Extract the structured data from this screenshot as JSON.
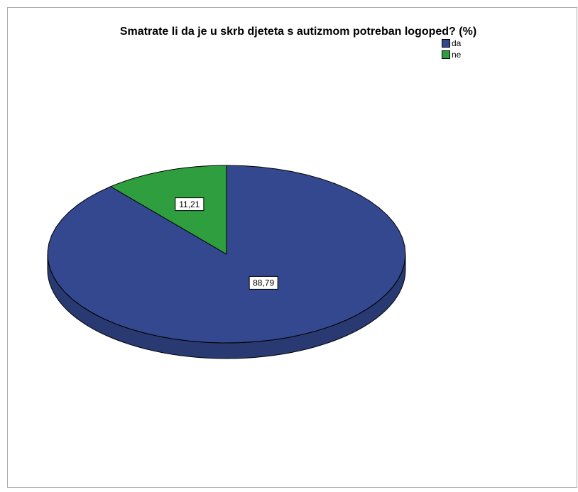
{
  "chart_data": {
    "type": "pie",
    "title": "Smatrate li da je u skrb djeteta s autizmom potreban logoped? (%)",
    "categories": [
      "da",
      "ne"
    ],
    "values": [
      88.79,
      11.21
    ],
    "value_labels": [
      "88,79",
      "11,21"
    ],
    "colors": [
      "#33488e",
      "#2e9e3e"
    ],
    "legend": "top-right"
  }
}
